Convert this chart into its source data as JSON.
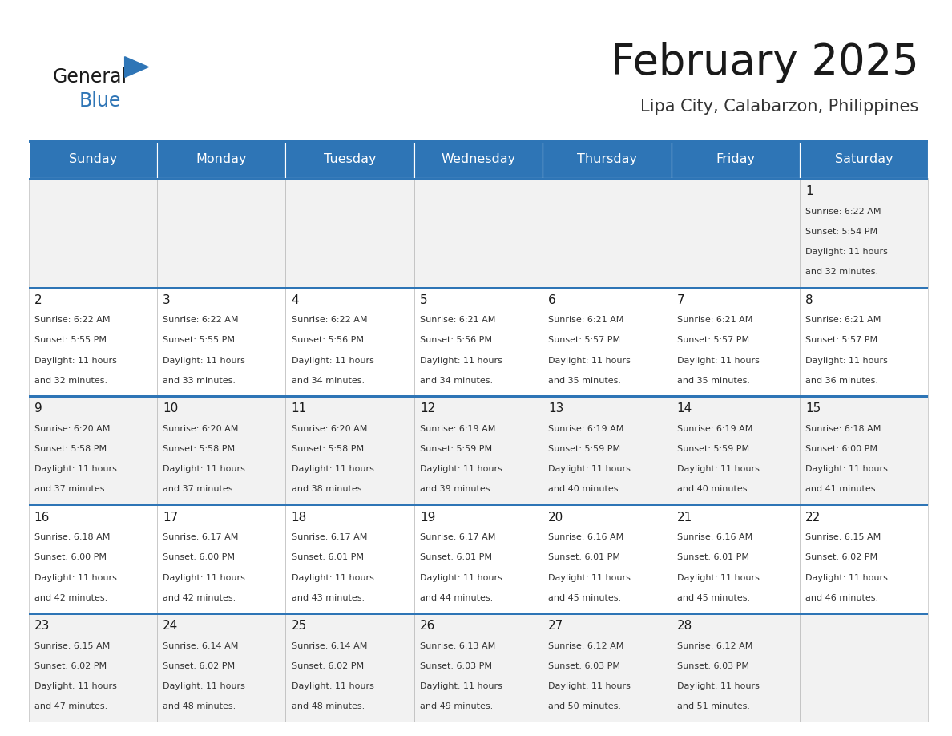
{
  "title": "February 2025",
  "subtitle": "Lipa City, Calabarzon, Philippines",
  "header_bg": "#2E75B6",
  "header_text": "#FFFFFF",
  "row_bg_light": "#F2F2F2",
  "row_bg_white": "#FFFFFF",
  "border_color": "#2E75B6",
  "cell_border_color": "#AAAAAA",
  "day_headers": [
    "Sunday",
    "Monday",
    "Tuesday",
    "Wednesday",
    "Thursday",
    "Friday",
    "Saturday"
  ],
  "days": [
    {
      "day": 1,
      "col": 6,
      "row": 0,
      "sunrise": "6:22 AM",
      "sunset": "5:54 PM",
      "daylight": "11 hours and 32 minutes."
    },
    {
      "day": 2,
      "col": 0,
      "row": 1,
      "sunrise": "6:22 AM",
      "sunset": "5:55 PM",
      "daylight": "11 hours and 32 minutes."
    },
    {
      "day": 3,
      "col": 1,
      "row": 1,
      "sunrise": "6:22 AM",
      "sunset": "5:55 PM",
      "daylight": "11 hours and 33 minutes."
    },
    {
      "day": 4,
      "col": 2,
      "row": 1,
      "sunrise": "6:22 AM",
      "sunset": "5:56 PM",
      "daylight": "11 hours and 34 minutes."
    },
    {
      "day": 5,
      "col": 3,
      "row": 1,
      "sunrise": "6:21 AM",
      "sunset": "5:56 PM",
      "daylight": "11 hours and 34 minutes."
    },
    {
      "day": 6,
      "col": 4,
      "row": 1,
      "sunrise": "6:21 AM",
      "sunset": "5:57 PM",
      "daylight": "11 hours and 35 minutes."
    },
    {
      "day": 7,
      "col": 5,
      "row": 1,
      "sunrise": "6:21 AM",
      "sunset": "5:57 PM",
      "daylight": "11 hours and 35 minutes."
    },
    {
      "day": 8,
      "col": 6,
      "row": 1,
      "sunrise": "6:21 AM",
      "sunset": "5:57 PM",
      "daylight": "11 hours and 36 minutes."
    },
    {
      "day": 9,
      "col": 0,
      "row": 2,
      "sunrise": "6:20 AM",
      "sunset": "5:58 PM",
      "daylight": "11 hours and 37 minutes."
    },
    {
      "day": 10,
      "col": 1,
      "row": 2,
      "sunrise": "6:20 AM",
      "sunset": "5:58 PM",
      "daylight": "11 hours and 37 minutes."
    },
    {
      "day": 11,
      "col": 2,
      "row": 2,
      "sunrise": "6:20 AM",
      "sunset": "5:58 PM",
      "daylight": "11 hours and 38 minutes."
    },
    {
      "day": 12,
      "col": 3,
      "row": 2,
      "sunrise": "6:19 AM",
      "sunset": "5:59 PM",
      "daylight": "11 hours and 39 minutes."
    },
    {
      "day": 13,
      "col": 4,
      "row": 2,
      "sunrise": "6:19 AM",
      "sunset": "5:59 PM",
      "daylight": "11 hours and 40 minutes."
    },
    {
      "day": 14,
      "col": 5,
      "row": 2,
      "sunrise": "6:19 AM",
      "sunset": "5:59 PM",
      "daylight": "11 hours and 40 minutes."
    },
    {
      "day": 15,
      "col": 6,
      "row": 2,
      "sunrise": "6:18 AM",
      "sunset": "6:00 PM",
      "daylight": "11 hours and 41 minutes."
    },
    {
      "day": 16,
      "col": 0,
      "row": 3,
      "sunrise": "6:18 AM",
      "sunset": "6:00 PM",
      "daylight": "11 hours and 42 minutes."
    },
    {
      "day": 17,
      "col": 1,
      "row": 3,
      "sunrise": "6:17 AM",
      "sunset": "6:00 PM",
      "daylight": "11 hours and 42 minutes."
    },
    {
      "day": 18,
      "col": 2,
      "row": 3,
      "sunrise": "6:17 AM",
      "sunset": "6:01 PM",
      "daylight": "11 hours and 43 minutes."
    },
    {
      "day": 19,
      "col": 3,
      "row": 3,
      "sunrise": "6:17 AM",
      "sunset": "6:01 PM",
      "daylight": "11 hours and 44 minutes."
    },
    {
      "day": 20,
      "col": 4,
      "row": 3,
      "sunrise": "6:16 AM",
      "sunset": "6:01 PM",
      "daylight": "11 hours and 45 minutes."
    },
    {
      "day": 21,
      "col": 5,
      "row": 3,
      "sunrise": "6:16 AM",
      "sunset": "6:01 PM",
      "daylight": "11 hours and 45 minutes."
    },
    {
      "day": 22,
      "col": 6,
      "row": 3,
      "sunrise": "6:15 AM",
      "sunset": "6:02 PM",
      "daylight": "11 hours and 46 minutes."
    },
    {
      "day": 23,
      "col": 0,
      "row": 4,
      "sunrise": "6:15 AM",
      "sunset": "6:02 PM",
      "daylight": "11 hours and 47 minutes."
    },
    {
      "day": 24,
      "col": 1,
      "row": 4,
      "sunrise": "6:14 AM",
      "sunset": "6:02 PM",
      "daylight": "11 hours and 48 minutes."
    },
    {
      "day": 25,
      "col": 2,
      "row": 4,
      "sunrise": "6:14 AM",
      "sunset": "6:02 PM",
      "daylight": "11 hours and 48 minutes."
    },
    {
      "day": 26,
      "col": 3,
      "row": 4,
      "sunrise": "6:13 AM",
      "sunset": "6:03 PM",
      "daylight": "11 hours and 49 minutes."
    },
    {
      "day": 27,
      "col": 4,
      "row": 4,
      "sunrise": "6:12 AM",
      "sunset": "6:03 PM",
      "daylight": "11 hours and 50 minutes."
    },
    {
      "day": 28,
      "col": 5,
      "row": 4,
      "sunrise": "6:12 AM",
      "sunset": "6:03 PM",
      "daylight": "11 hours and 51 minutes."
    }
  ]
}
